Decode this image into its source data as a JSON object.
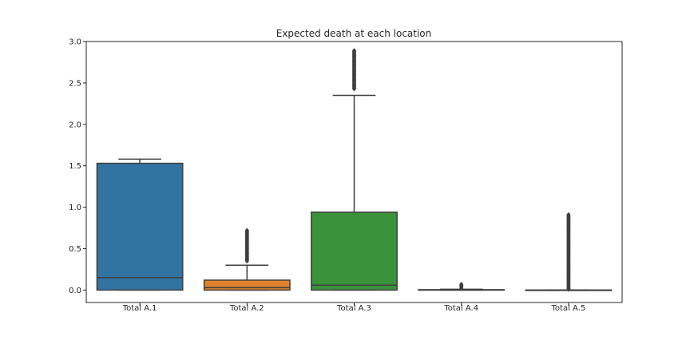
{
  "chart_data": {
    "type": "box",
    "title": "Expected death at each location",
    "xlabel": "",
    "ylabel": "",
    "ylim": [
      -0.15,
      3.0
    ],
    "yticks": [
      0.0,
      0.5,
      1.0,
      1.5,
      2.0,
      2.5,
      3.0
    ],
    "ytick_labels": [
      "0.0",
      "0.5",
      "1.0",
      "1.5",
      "2.0",
      "2.5",
      "3.0"
    ],
    "grid": false,
    "categories": [
      "Total A.1",
      "Total A.2",
      "Total A.3",
      "Total A.4",
      "Total A.5"
    ],
    "boxes": [
      {
        "name": "Total A.1",
        "color": "#3274a1",
        "whisker_low": 0.0,
        "q1": 0.0,
        "median": 0.15,
        "q3": 1.53,
        "whisker_high": 1.58,
        "outliers": {
          "ranges": []
        }
      },
      {
        "name": "Total A.2",
        "color": "#e1812c",
        "whisker_low": 0.0,
        "q1": 0.0,
        "median": 0.03,
        "q3": 0.12,
        "whisker_high": 0.3,
        "outliers": {
          "ranges": [
            [
              0.35,
              0.72
            ]
          ]
        }
      },
      {
        "name": "Total A.3",
        "color": "#3a923a",
        "whisker_low": 0.0,
        "q1": 0.0,
        "median": 0.06,
        "q3": 0.94,
        "whisker_high": 2.35,
        "outliers": {
          "ranges": [
            [
              2.42,
              2.89
            ]
          ]
        }
      },
      {
        "name": "Total A.4",
        "color": "#c03d3e",
        "whisker_low": 0.0,
        "q1": 0.0,
        "median": 0.0,
        "q3": 0.005,
        "whisker_high": 0.01,
        "outliers": {
          "ranges": [
            [
              0.015,
              0.07
            ]
          ]
        }
      },
      {
        "name": "Total A.5",
        "color": "#9372b2",
        "whisker_low": 0.0,
        "q1": 0.0,
        "median": 0.0,
        "q3": 0.0,
        "whisker_high": 0.0,
        "outliers": {
          "ranges": [
            [
              0.0,
              0.91
            ]
          ]
        }
      }
    ]
  }
}
